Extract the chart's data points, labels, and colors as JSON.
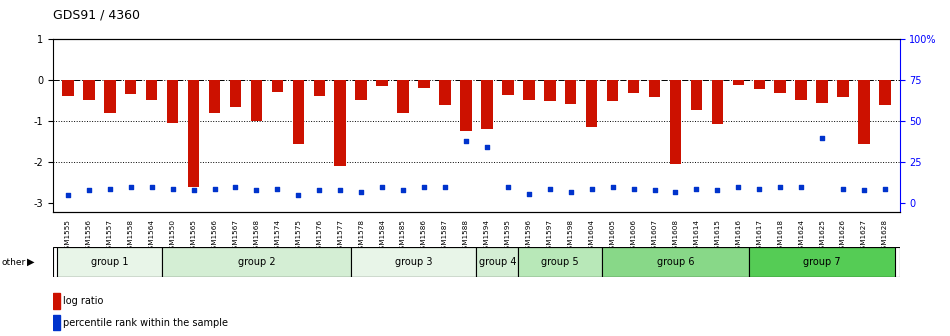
{
  "title": "GDS91 / 4360",
  "samples": [
    "GSM1555",
    "GSM1556",
    "GSM1557",
    "GSM1558",
    "GSM1564",
    "GSM1550",
    "GSM1565",
    "GSM1566",
    "GSM1567",
    "GSM1568",
    "GSM1574",
    "GSM1575",
    "GSM1576",
    "GSM1577",
    "GSM1578",
    "GSM1584",
    "GSM1585",
    "GSM1586",
    "GSM1587",
    "GSM1588",
    "GSM1594",
    "GSM1595",
    "GSM1596",
    "GSM1597",
    "GSM1598",
    "GSM1604",
    "GSM1605",
    "GSM1606",
    "GSM1607",
    "GSM1608",
    "GSM1614",
    "GSM1615",
    "GSM1616",
    "GSM1617",
    "GSM1618",
    "GSM1624",
    "GSM1625",
    "GSM1626",
    "GSM1627",
    "GSM1628"
  ],
  "log_ratios": [
    -0.4,
    -0.5,
    -0.8,
    -0.35,
    -0.5,
    -1.05,
    -2.6,
    -0.8,
    -0.65,
    -1.0,
    -0.3,
    -1.55,
    -0.4,
    -2.1,
    -0.5,
    -0.15,
    -0.8,
    -0.2,
    -0.6,
    -1.25,
    -1.2,
    -0.38,
    -0.48,
    -0.52,
    -0.58,
    -1.15,
    -0.52,
    -0.32,
    -0.42,
    -2.05,
    -0.72,
    -1.08,
    -0.12,
    -0.22,
    -0.32,
    -0.48,
    -0.55,
    -0.42,
    -1.55,
    -0.62
  ],
  "percentile_ranks": [
    5,
    8,
    9,
    10,
    10,
    9,
    8,
    9,
    10,
    8,
    9,
    5,
    8,
    8,
    7,
    10,
    8,
    10,
    10,
    38,
    34,
    10,
    6,
    9,
    7,
    9,
    10,
    9,
    8,
    7,
    9,
    8,
    10,
    9,
    10,
    10,
    40,
    9,
    8,
    9
  ],
  "bar_color": "#CC1100",
  "dot_color": "#0033CC",
  "groups": [
    {
      "label": "group 1",
      "start": 0,
      "end": 5,
      "color": "#e8f5e8"
    },
    {
      "label": "group 2",
      "start": 5,
      "end": 14,
      "color": "#d4eed4"
    },
    {
      "label": "group 3",
      "start": 14,
      "end": 20,
      "color": "#e8f5e8"
    },
    {
      "label": "group 4",
      "start": 20,
      "end": 22,
      "color": "#d4eed4"
    },
    {
      "label": "group 5",
      "start": 22,
      "end": 26,
      "color": "#b8e8b8"
    },
    {
      "label": "group 6",
      "start": 26,
      "end": 33,
      "color": "#88d888"
    },
    {
      "label": "group 7",
      "start": 33,
      "end": 40,
      "color": "#55cc55"
    }
  ],
  "ylim": [
    -3.2,
    1.0
  ],
  "yticks": [
    1,
    0,
    -1,
    -2,
    -3
  ],
  "right_ytick_positions": [
    1.0,
    0.0,
    -1.0,
    -2.0,
    -3.0
  ],
  "right_ytick_labels": [
    "100%",
    "75",
    "50",
    "25",
    "0"
  ],
  "hline_positions": [
    0.0,
    -1.0,
    -2.0
  ],
  "hline_styles": [
    "dashdot",
    "dotted",
    "dotted"
  ],
  "background_color": "#ffffff"
}
